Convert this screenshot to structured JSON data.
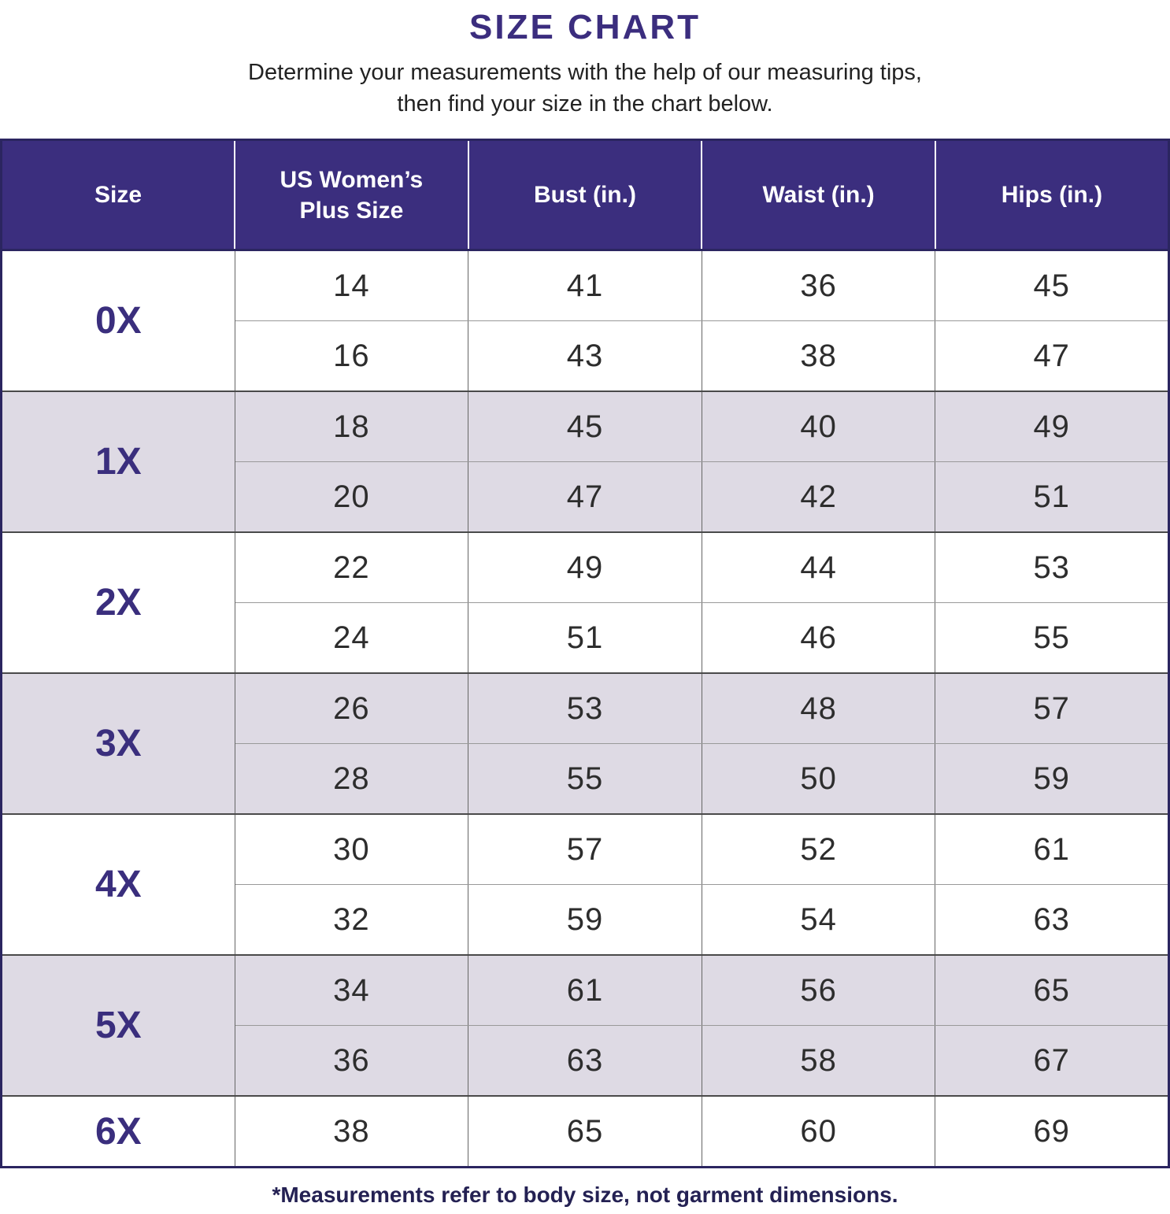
{
  "page": {
    "title": "SIZE CHART",
    "subtitle_line1": "Determine your measurements with the help of our measuring tips,",
    "subtitle_line2": "then find your size in the chart below.",
    "footnote": "*Measurements refer to body size, not garment dimensions."
  },
  "colors": {
    "header_bg": "#3B2E7E",
    "title_text": "#3B2D7E",
    "shaded_row_bg": "#DEDAE4",
    "plain_row_bg": "#FFFFFF",
    "outer_border": "#2B2560",
    "group_divider": "#4A4A4A",
    "subrow_divider": "#999999",
    "column_divider": "#666666",
    "data_text": "#2D2D2D",
    "size_label_text": "#3A2E7D",
    "footnote_text": "#242153"
  },
  "chart_data": {
    "type": "table",
    "title": "SIZE CHART",
    "columns": [
      "Size",
      "US Women’s Plus Size",
      "Bust (in.)",
      "Waist (in.)",
      "Hips (in.)"
    ],
    "groups": [
      {
        "size": "0X",
        "shaded": false,
        "rows": [
          [
            14,
            41,
            36,
            45
          ],
          [
            16,
            43,
            38,
            47
          ]
        ]
      },
      {
        "size": "1X",
        "shaded": true,
        "rows": [
          [
            18,
            45,
            40,
            49
          ],
          [
            20,
            47,
            42,
            51
          ]
        ]
      },
      {
        "size": "2X",
        "shaded": false,
        "rows": [
          [
            22,
            49,
            44,
            53
          ],
          [
            24,
            51,
            46,
            55
          ]
        ]
      },
      {
        "size": "3X",
        "shaded": true,
        "rows": [
          [
            26,
            53,
            48,
            57
          ],
          [
            28,
            55,
            50,
            59
          ]
        ]
      },
      {
        "size": "4X",
        "shaded": false,
        "rows": [
          [
            30,
            57,
            52,
            61
          ],
          [
            32,
            59,
            54,
            63
          ]
        ]
      },
      {
        "size": "5X",
        "shaded": true,
        "rows": [
          [
            34,
            61,
            56,
            65
          ],
          [
            36,
            63,
            58,
            67
          ]
        ]
      },
      {
        "size": "6X",
        "shaded": false,
        "rows": [
          [
            38,
            65,
            60,
            69
          ]
        ]
      }
    ]
  }
}
